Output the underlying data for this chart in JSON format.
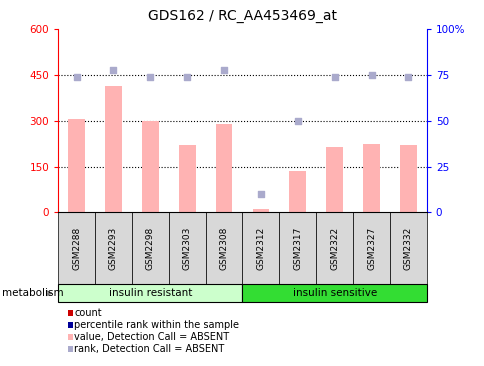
{
  "title": "GDS162 / RC_AA453469_at",
  "samples": [
    "GSM2288",
    "GSM2293",
    "GSM2298",
    "GSM2303",
    "GSM2308",
    "GSM2312",
    "GSM2317",
    "GSM2322",
    "GSM2327",
    "GSM2332"
  ],
  "bar_values": [
    305,
    415,
    300,
    220,
    290,
    10,
    135,
    215,
    225,
    220
  ],
  "rank_values": [
    74,
    78,
    74,
    74,
    78,
    10,
    50,
    74,
    75,
    74
  ],
  "bar_color": "#FFB3B3",
  "rank_color": "#AAAACC",
  "ylim_left": [
    0,
    600
  ],
  "ylim_right": [
    0,
    100
  ],
  "yticks_left": [
    0,
    150,
    300,
    450,
    600
  ],
  "yticks_right": [
    0,
    25,
    50,
    75,
    100
  ],
  "ytick_labels_right": [
    "0",
    "25",
    "50",
    "75",
    "100%"
  ],
  "hlines": [
    150,
    300,
    450
  ],
  "groups": [
    {
      "label": "insulin resistant",
      "start": 0,
      "end": 5,
      "color": "#CCFFCC"
    },
    {
      "label": "insulin sensitive",
      "start": 5,
      "end": 10,
      "color": "#33DD33"
    }
  ],
  "metabolism_label": "metabolism",
  "legend_items": [
    {
      "color": "#CC0000",
      "label": "count"
    },
    {
      "color": "#000099",
      "label": "percentile rank within the sample"
    },
    {
      "color": "#FFB3B3",
      "label": "value, Detection Call = ABSENT"
    },
    {
      "color": "#AAAACC",
      "label": "rank, Detection Call = ABSENT"
    }
  ],
  "bar_width": 0.45,
  "background_color": "#FFFFFF",
  "plot_bg": "#FFFFFF",
  "label_box_color": "#D8D8D8"
}
